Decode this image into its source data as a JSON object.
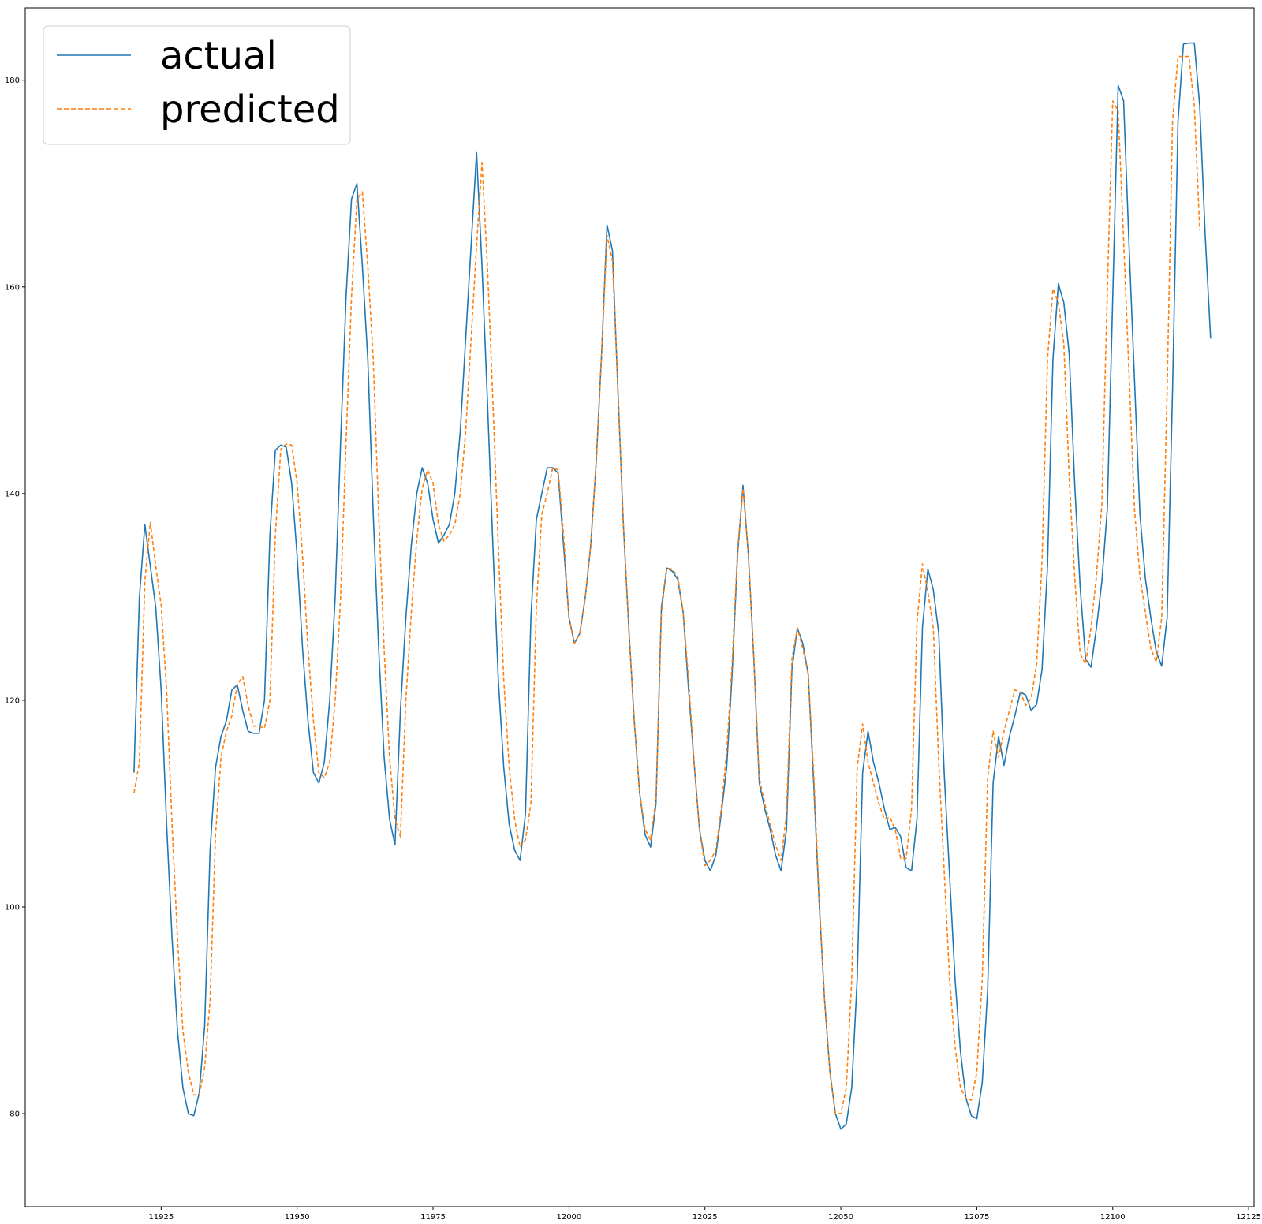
{
  "chart_data": {
    "type": "line",
    "title": "",
    "xlabel": "",
    "ylabel": "",
    "xlim": [
      11900,
      12126
    ],
    "ylim": [
      71,
      187
    ],
    "x_ticks": [
      11925,
      11950,
      11975,
      12000,
      12025,
      12050,
      12075,
      12100,
      12125
    ],
    "y_ticks": [
      80,
      100,
      120,
      140,
      160,
      180
    ],
    "grid": false,
    "legend_position": "top-left",
    "x_start": 11920,
    "series": [
      {
        "name": "actual",
        "color": "#1f77b4",
        "dash": "solid",
        "values": [
          113,
          130,
          137,
          133,
          129,
          121,
          108,
          97,
          88,
          82.5,
          80,
          79.8,
          82,
          88.5,
          105.5,
          113.5,
          116.5,
          118,
          121,
          121.5,
          119,
          117,
          116.8,
          116.8,
          120,
          136,
          144.2,
          144.7,
          144.5,
          141,
          134,
          125,
          118,
          113,
          112,
          114,
          120,
          130,
          145,
          159,
          168.5,
          170,
          162,
          153,
          138,
          125,
          114.5,
          108.5,
          106,
          119,
          128,
          135,
          140,
          142.5,
          141,
          137.5,
          135.2,
          136,
          137,
          140,
          146,
          155,
          164,
          173,
          162,
          149,
          135,
          122,
          113.5,
          108,
          105.5,
          104.5,
          109,
          128,
          137.5,
          140,
          142.5,
          142.5,
          142,
          135,
          128,
          125.5,
          126.5,
          130,
          135,
          143,
          153.5,
          166,
          163.5,
          150,
          137,
          127,
          118,
          111,
          107,
          105.8,
          110,
          129,
          132.8,
          132.5,
          131.7,
          128.5,
          121,
          114,
          107.5,
          104.5,
          103.5,
          105,
          109,
          113.5,
          122.5,
          134,
          140.8,
          134,
          124,
          112,
          109.5,
          107.5,
          105,
          103.5,
          107.5,
          123,
          127,
          125.5,
          122.5,
          112,
          100.5,
          91,
          84,
          80,
          78.5,
          79,
          82.5,
          93,
          113,
          117,
          114,
          112,
          109.5,
          107.5,
          107.7,
          106.8,
          103.8,
          103.5,
          108.5,
          127,
          132.7,
          130.7,
          126.5,
          113,
          103,
          93,
          86,
          81.5,
          79.8,
          79.5,
          83,
          92,
          112,
          116.5,
          113.7,
          116.5,
          118.5,
          120.8,
          120.5,
          119,
          119.6,
          123,
          133,
          153,
          160.3,
          158.5,
          153.5,
          141,
          131,
          124,
          123.2,
          127,
          131.5,
          138.5,
          159,
          179.5,
          178,
          164,
          151,
          138,
          131.8,
          128,
          124.7,
          123.3,
          128,
          150,
          176,
          183.5,
          183.6,
          183.6,
          177.5,
          165,
          155
        ]
      },
      {
        "name": "predicted",
        "color": "#ff7f0e",
        "dash": "dashed",
        "values": [
          111,
          114,
          131.5,
          137.2,
          133,
          129.2,
          121,
          108,
          97,
          88,
          84,
          81.8,
          81.8,
          84.5,
          91,
          107,
          114.5,
          117,
          118.5,
          121.5,
          122.3,
          119.5,
          117.5,
          117.5,
          117.3,
          120,
          136,
          144.3,
          144.8,
          144.7,
          141,
          134,
          125,
          118,
          113,
          112.5,
          114,
          120,
          130,
          145,
          159,
          168.5,
          169.2,
          162,
          153,
          138,
          125,
          114.5,
          108.5,
          106.8,
          120,
          128.5,
          135.5,
          140.5,
          142.3,
          141,
          137,
          135.4,
          136,
          137,
          140,
          146,
          155,
          164,
          172,
          162,
          149,
          135,
          122,
          113.5,
          108.5,
          105.8,
          106.5,
          110,
          129,
          138,
          140,
          142.5,
          142.3,
          136,
          128,
          125.5,
          126.5,
          130,
          135,
          143,
          153.5,
          165,
          162.5,
          150,
          137,
          127,
          118,
          111,
          107.5,
          106.5,
          110.5,
          128.5,
          132.8,
          132.7,
          132,
          128.5,
          122,
          114,
          107.5,
          104,
          104.5,
          105.5,
          109.5,
          115,
          123.5,
          134.5,
          140.5,
          134,
          124,
          112.5,
          110,
          108,
          106,
          104.5,
          109,
          124,
          127,
          125,
          122.5,
          113,
          101,
          91,
          84,
          80,
          80,
          82.5,
          93,
          113.5,
          117.7,
          114,
          112,
          110,
          108.5,
          108.7,
          107.5,
          104.7,
          104.7,
          109.5,
          127.5,
          133.2,
          130.5,
          127,
          114,
          103.5,
          93,
          86.5,
          82.5,
          81.5,
          81.3,
          84,
          93,
          112.5,
          117,
          114.5,
          117,
          119,
          121,
          120.8,
          119.5,
          120.2,
          123.5,
          133.5,
          153,
          159.8,
          158.5,
          154.5,
          141.5,
          132,
          124.5,
          123.5,
          127,
          132,
          139,
          159.5,
          178,
          177,
          164.5,
          151.5,
          138.5,
          132,
          128.5,
          125,
          123.7,
          128,
          150,
          176,
          182.3,
          182.3,
          182.3,
          177.5,
          165.5
        ]
      }
    ]
  }
}
